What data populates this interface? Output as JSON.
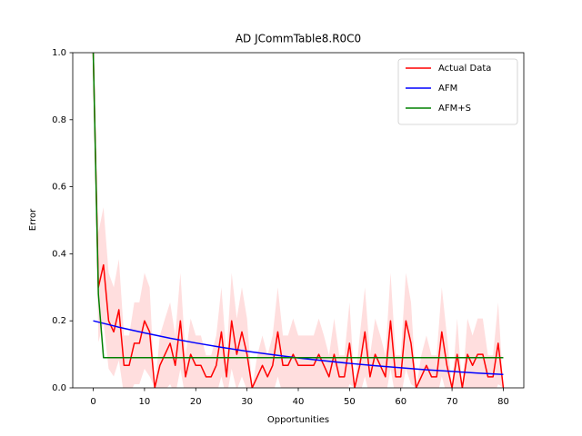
{
  "chart_data": {
    "type": "line",
    "title": "AD JCommTable8.R0C0",
    "x_label": "Opportunities",
    "y_label": "Error",
    "xlim": [
      -4,
      84
    ],
    "xticks": [
      0,
      10,
      20,
      30,
      40,
      50,
      60,
      70,
      80
    ],
    "ylim": [
      0,
      1
    ],
    "yticks": [
      {
        "value": 0,
        "label": "0.0"
      },
      {
        "value": 0.2,
        "label": "0.2"
      },
      {
        "value": 0.4,
        "label": "0.4"
      },
      {
        "value": 0.6,
        "label": "0.6"
      },
      {
        "value": 0.8,
        "label": "0.8"
      },
      {
        "value": 1,
        "label": "1.0"
      }
    ],
    "legend": "upper right",
    "grid": false,
    "series": [
      {
        "name": "Actual Data",
        "color": "#ff0000",
        "x": [
          0,
          1,
          2,
          3,
          4,
          5,
          6,
          7,
          8,
          9,
          10,
          11,
          12,
          13,
          14,
          15,
          16,
          17,
          18,
          19,
          20,
          21,
          22,
          23,
          24,
          25,
          26,
          27,
          28,
          29,
          30,
          31,
          32,
          33,
          34,
          35,
          36,
          37,
          38,
          39,
          40,
          41,
          42,
          43,
          44,
          45,
          46,
          47,
          48,
          49,
          50,
          51,
          52,
          53,
          54,
          55,
          56,
          57,
          58,
          59,
          60,
          61,
          62,
          63,
          64,
          65,
          66,
          67,
          68,
          69,
          70,
          71,
          72,
          73,
          74,
          75,
          76,
          77,
          78,
          79,
          80
        ],
        "values": [
          1.0,
          0.3,
          0.367,
          0.2,
          0.167,
          0.233,
          0.067,
          0.067,
          0.133,
          0.133,
          0.2,
          0.167,
          0.0,
          0.067,
          0.1,
          0.133,
          0.067,
          0.2,
          0.033,
          0.1,
          0.067,
          0.067,
          0.033,
          0.033,
          0.067,
          0.167,
          0.033,
          0.2,
          0.1,
          0.167,
          0.1,
          0.0,
          0.033,
          0.067,
          0.033,
          0.067,
          0.167,
          0.067,
          0.067,
          0.1,
          0.067,
          0.067,
          0.067,
          0.067,
          0.1,
          0.067,
          0.033,
          0.1,
          0.033,
          0.033,
          0.133,
          0.0,
          0.067,
          0.167,
          0.033,
          0.1,
          0.067,
          0.033,
          0.2,
          0.033,
          0.033,
          0.2,
          0.133,
          0.0,
          0.033,
          0.067,
          0.033,
          0.033,
          0.167,
          0.067,
          0.0,
          0.1,
          0.0,
          0.1,
          0.067,
          0.1,
          0.1,
          0.033,
          0.033,
          0.133,
          0.0
        ],
        "error": [
          0,
          0.164,
          0.172,
          0.143,
          0.133,
          0.151,
          0.089,
          0.089,
          0.122,
          0.122,
          0.143,
          0.133,
          0,
          0.089,
          0.107,
          0.122,
          0.089,
          0.143,
          0.064,
          0.107,
          0.089,
          0.089,
          0.064,
          0.064,
          0.089,
          0.133,
          0.064,
          0.143,
          0.107,
          0.133,
          0.107,
          0,
          0.064,
          0.089,
          0.064,
          0.089,
          0.133,
          0.089,
          0.089,
          0.107,
          0.089,
          0.089,
          0.089,
          0.089,
          0.107,
          0.089,
          0.064,
          0.107,
          0.064,
          0.064,
          0.122,
          0,
          0.089,
          0.133,
          0.064,
          0.107,
          0.089,
          0.064,
          0.143,
          0.064,
          0.064,
          0.143,
          0.122,
          0,
          0.064,
          0.089,
          0.064,
          0.064,
          0.133,
          0.089,
          0,
          0.107,
          0,
          0.107,
          0.089,
          0.107,
          0.107,
          0.064,
          0.064,
          0.122,
          0
        ]
      },
      {
        "name": "AFM",
        "color": "#0000ff",
        "x": [
          0,
          5,
          10,
          15,
          20,
          25,
          30,
          35,
          40,
          45,
          50,
          55,
          60,
          65,
          70,
          75,
          80
        ],
        "values": [
          0.2,
          0.181,
          0.164,
          0.148,
          0.134,
          0.121,
          0.109,
          0.099,
          0.089,
          0.081,
          0.073,
          0.066,
          0.06,
          0.054,
          0.049,
          0.044,
          0.04
        ]
      },
      {
        "name": "AFM+S",
        "color": "#008000",
        "x": [
          0,
          1,
          2,
          80
        ],
        "values": [
          1.0,
          0.28,
          0.09,
          0.09
        ]
      }
    ]
  }
}
